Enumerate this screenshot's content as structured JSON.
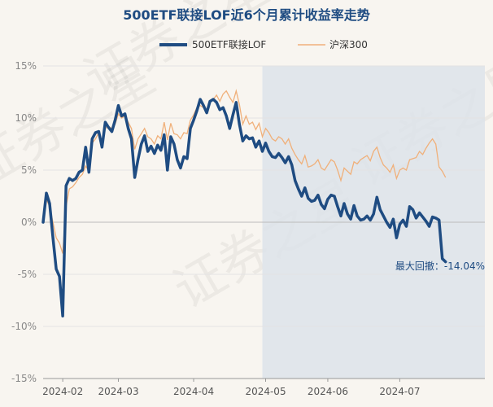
{
  "chart_data": {
    "type": "line",
    "title": "500ETF联接LOF近6个月累计收益率走势",
    "watermark": "证券之星",
    "ylim": [
      -15,
      15
    ],
    "yticks": [
      15,
      10,
      5,
      0,
      -5,
      -10,
      -15
    ],
    "ytick_labels": [
      "15%",
      "10%",
      "5%",
      "0%",
      "-5%",
      "-10%",
      "-15%"
    ],
    "xlim": [
      0,
      135
    ],
    "xticks": [
      {
        "x": 6,
        "label": "2024-02"
      },
      {
        "x": 23,
        "label": "2024-03"
      },
      {
        "x": 46,
        "label": "2024-04"
      },
      {
        "x": 68,
        "label": "2024-05"
      },
      {
        "x": 87,
        "label": "2024-06"
      },
      {
        "x": 109,
        "label": "2024-07"
      }
    ],
    "drawdown_start_x": 67,
    "annotation": "最大回撤：-14.04%",
    "colors": {
      "fund": "#1f4c82",
      "index": "#f0b07a",
      "shade": "#dde3ea",
      "grid": "#e3e3e3",
      "zero": "#bbbbbb"
    },
    "series": [
      {
        "name": "500ETF联接LOF",
        "values": [
          0.0,
          2.8,
          1.8,
          -1.5,
          -4.5,
          -5.2,
          -9.0,
          3.5,
          4.2,
          4.0,
          4.2,
          4.8,
          5.0,
          7.2,
          4.8,
          8.0,
          8.6,
          8.7,
          7.2,
          9.6,
          9.1,
          8.7,
          9.8,
          11.2,
          10.2,
          10.4,
          9.0,
          8.0,
          4.3,
          6.0,
          7.5,
          8.3,
          6.8,
          7.3,
          6.6,
          7.4,
          6.9,
          8.4,
          5.0,
          8.2,
          7.5,
          6.0,
          5.2,
          6.3,
          6.1,
          9.0,
          9.8,
          10.7,
          11.8,
          11.2,
          10.5,
          11.6,
          11.8,
          11.5,
          10.8,
          11.0,
          10.2,
          9.0,
          10.3,
          11.5,
          9.4,
          7.8,
          8.3,
          8.0,
          8.1,
          7.2,
          7.8,
          6.8,
          7.6,
          6.8,
          6.3,
          6.2,
          6.6,
          6.2,
          5.7,
          6.3,
          5.5,
          4.0,
          3.2,
          2.5,
          3.3,
          2.3,
          2.0,
          2.1,
          2.6,
          1.7,
          1.3,
          2.2,
          2.6,
          2.5,
          1.5,
          0.6,
          1.8,
          0.8,
          0.3,
          1.6,
          0.6,
          0.2,
          0.3,
          0.6,
          0.2,
          0.8,
          2.4,
          1.2,
          0.6,
          0.0,
          -0.5,
          0.3,
          -1.5,
          -0.2,
          0.2,
          -0.4,
          1.5,
          1.2,
          0.4,
          0.9,
          0.5,
          0.1,
          -0.4,
          0.5,
          0.4,
          0.2,
          -3.5,
          -3.8
        ],
        "color": "#1f4c82"
      },
      {
        "name": "沪深300",
        "values": [
          0.0,
          2.2,
          1.5,
          0.0,
          -1.5,
          -2.0,
          -3.0,
          1.5,
          3.2,
          3.4,
          3.8,
          4.3,
          4.6,
          5.4,
          4.9,
          7.6,
          8.0,
          8.6,
          7.8,
          9.0,
          9.2,
          9.0,
          9.4,
          10.4,
          10.0,
          10.2,
          9.6,
          9.0,
          7.0,
          8.0,
          8.5,
          9.0,
          8.2,
          8.0,
          7.5,
          8.3,
          8.0,
          9.6,
          7.9,
          9.5,
          8.5,
          8.4,
          8.0,
          8.6,
          8.5,
          9.8,
          10.3,
          11.0,
          11.2,
          11.0,
          10.8,
          11.5,
          11.8,
          12.2,
          11.6,
          12.3,
          12.6,
          12.0,
          11.5,
          12.6,
          11.3,
          9.4,
          10.2,
          9.4,
          9.6,
          8.9,
          9.5,
          8.2,
          9.0,
          8.6,
          8.0,
          7.8,
          8.2,
          8.0,
          7.5,
          8.0,
          7.1,
          6.5,
          6.0,
          5.6,
          6.4,
          5.3,
          5.4,
          5.6,
          6.0,
          5.2,
          5.0,
          5.5,
          6.0,
          5.8,
          5.0,
          4.0,
          5.2,
          4.9,
          4.6,
          5.8,
          5.6,
          6.0,
          6.2,
          6.4,
          5.9,
          6.8,
          7.2,
          6.2,
          5.5,
          5.2,
          4.8,
          5.5,
          4.2,
          5.0,
          5.2,
          5.0,
          6.0,
          6.1,
          6.2,
          6.8,
          6.5,
          7.1,
          7.6,
          8.0,
          7.5,
          5.3,
          4.9,
          4.3
        ],
        "color": "#f0b07a"
      }
    ]
  }
}
